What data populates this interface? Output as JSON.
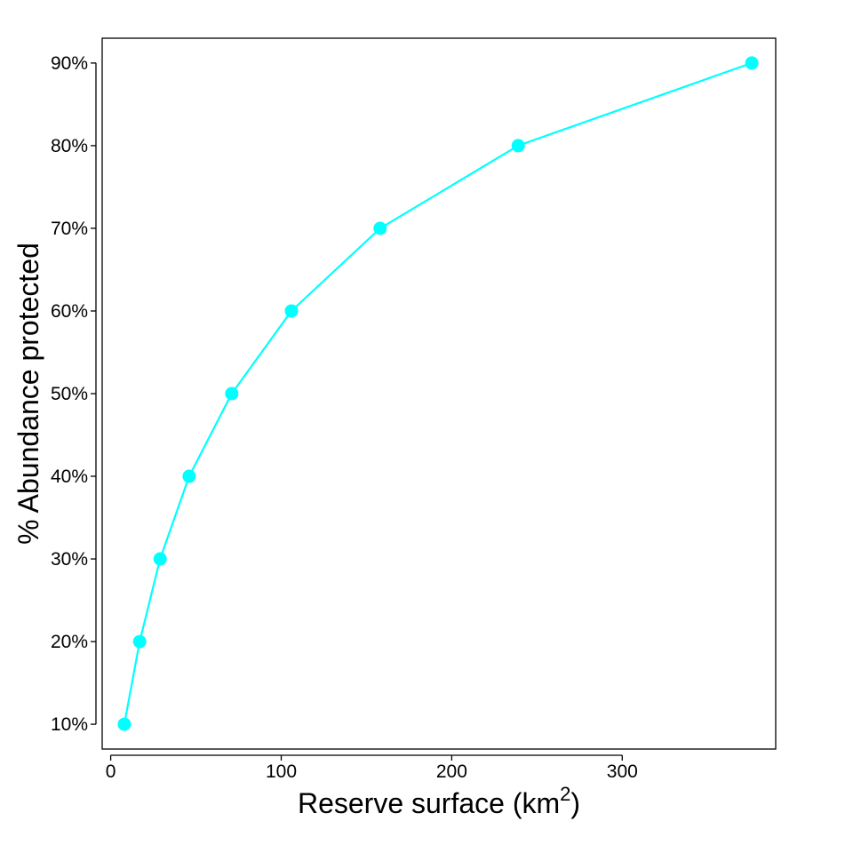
{
  "chart_data": {
    "type": "line",
    "xlabel": {
      "main": "Reserve surface (km",
      "superscript": "2",
      "close": ")"
    },
    "ylabel": "% Abundance protected",
    "xlim": [
      -5,
      390
    ],
    "ylim": [
      7,
      93
    ],
    "x_ticks": [
      0,
      100,
      200,
      300
    ],
    "x_tick_labels": [
      "0",
      "100",
      "200",
      "300"
    ],
    "y_ticks": [
      10,
      20,
      30,
      40,
      50,
      60,
      70,
      80,
      90
    ],
    "y_tick_labels": [
      "10%",
      "20%",
      "30%",
      "40%",
      "50%",
      "60%",
      "70%",
      "80%",
      "90%"
    ],
    "grid": false,
    "legend": "none",
    "series": [
      {
        "color": "#00FFFF",
        "x": [
          8,
          17,
          29,
          46,
          71,
          106,
          158,
          239,
          376
        ],
        "y": [
          10,
          20,
          30,
          40,
          50,
          60,
          70,
          80,
          90
        ]
      }
    ]
  }
}
